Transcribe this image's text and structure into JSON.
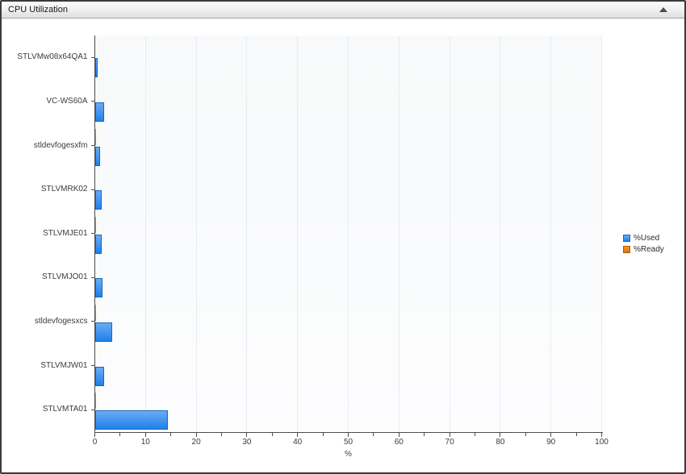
{
  "window": {
    "title": "CPU Utilization"
  },
  "chart_data": {
    "type": "bar",
    "orientation": "horizontal",
    "title": "CPU Utilization",
    "categories": [
      "STLVMw08x64QA1",
      "VC-WS60A",
      "stldevfogesxfm",
      "STLVMRK02",
      "STLVMJE01",
      "STLVMJO01",
      "stldevfogesxcs",
      "STLVMJW01",
      "STLVMTA01"
    ],
    "series": [
      {
        "name": "%Used",
        "color_top": "#6aacf4",
        "color_bottom": "#2080e8",
        "border": "#1a66c2",
        "values": [
          0.6,
          1.9,
          1.0,
          1.3,
          1.4,
          1.5,
          3.5,
          1.9,
          14.4
        ]
      },
      {
        "name": "%Ready",
        "color_top": "#f09a30",
        "color_bottom": "#d9760a",
        "border": "#a85c08",
        "values": [
          0.1,
          0.1,
          0.3,
          0.1,
          0.3,
          0.1,
          0.3,
          0.1,
          0.3
        ]
      }
    ],
    "xlabel": "%",
    "xlim": [
      0,
      100
    ],
    "x_major_tick": 10,
    "x_minor_tick": 5,
    "grid": true,
    "legend_position": "right-middle"
  }
}
